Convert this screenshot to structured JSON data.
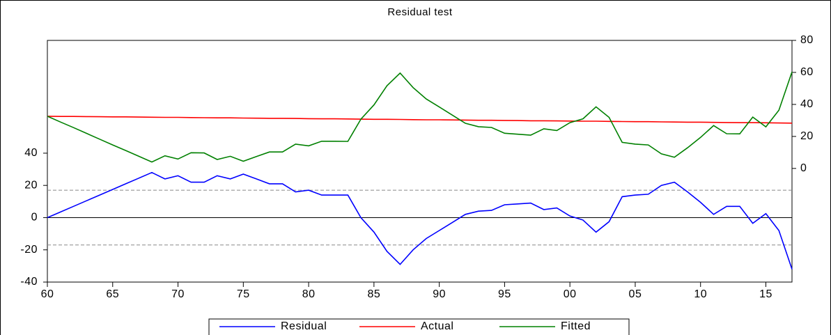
{
  "chart_data": {
    "type": "line",
    "title": "Residual test",
    "x": [
      1960,
      1961,
      1962,
      1963,
      1964,
      1965,
      1966,
      1967,
      1968,
      1969,
      1970,
      1971,
      1972,
      1973,
      1974,
      1975,
      1976,
      1977,
      1978,
      1979,
      1980,
      1981,
      1982,
      1983,
      1984,
      1985,
      1986,
      1987,
      1988,
      1989,
      1990,
      1991,
      1992,
      1993,
      1994,
      1995,
      1996,
      1997,
      1998,
      1999,
      2000,
      2001,
      2002,
      2003,
      2004,
      2005,
      2006,
      2007,
      2008,
      2009,
      2010,
      2011,
      2012,
      2013,
      2014,
      2015,
      2016,
      2017
    ],
    "xlim": [
      1960,
      2017
    ],
    "xticks": [
      {
        "value": 1960,
        "label": "60"
      },
      {
        "value": 1965,
        "label": "65"
      },
      {
        "value": 1970,
        "label": "70"
      },
      {
        "value": 1975,
        "label": "75"
      },
      {
        "value": 1980,
        "label": "80"
      },
      {
        "value": 1985,
        "label": "85"
      },
      {
        "value": 1990,
        "label": "90"
      },
      {
        "value": 1995,
        "label": "95"
      },
      {
        "value": 2000,
        "label": "00"
      },
      {
        "value": 2005,
        "label": "05"
      },
      {
        "value": 2010,
        "label": "10"
      },
      {
        "value": 2015,
        "label": "15"
      }
    ],
    "ylim": [
      -40,
      110
    ],
    "yticks": [
      -40,
      -20,
      0,
      20,
      40
    ],
    "y2lim": [
      -71,
      80
    ],
    "y2ticks": [
      0,
      20,
      40,
      60,
      80
    ],
    "zero_line": true,
    "bands": [
      17,
      -17
    ],
    "legend": "bottom",
    "series": [
      {
        "name": "Residual",
        "color": "#0000ff",
        "axis": "y",
        "values": [
          0,
          3.5,
          7,
          10.5,
          14,
          17.5,
          21,
          24.5,
          28,
          24,
          26,
          22,
          22,
          26,
          24,
          27,
          24,
          21,
          21,
          16,
          17,
          14,
          14,
          14,
          0,
          -9,
          -21,
          -29,
          -20,
          -13,
          -8,
          -3,
          2,
          4,
          4.5,
          8,
          8.5,
          9,
          5,
          6,
          1,
          -1.5,
          -9,
          -2.5,
          13,
          14,
          14.5,
          20,
          22,
          16,
          9.5,
          2,
          7,
          7,
          -3.5,
          2.5,
          -8,
          -32
        ]
      },
      {
        "name": "Actual",
        "color": "#ff0000",
        "axis": "y2",
        "values": [
          32.6,
          32.5,
          32.5,
          32.4,
          32.3,
          32.2,
          32.2,
          32.1,
          32.0,
          31.9,
          31.9,
          31.8,
          31.7,
          31.6,
          31.6,
          31.5,
          31.4,
          31.3,
          31.3,
          31.2,
          31.1,
          31.0,
          31.0,
          30.9,
          30.8,
          30.7,
          30.7,
          30.6,
          30.5,
          30.4,
          30.4,
          30.3,
          30.2,
          30.1,
          30.1,
          30.0,
          29.9,
          29.8,
          29.8,
          29.7,
          29.6,
          29.5,
          29.5,
          29.4,
          29.3,
          29.2,
          29.2,
          29.1,
          29.0,
          28.9,
          28.9,
          28.8,
          28.7,
          28.6,
          28.6,
          28.5,
          28.4,
          28.3
        ]
      },
      {
        "name": "Fitted",
        "color": "#008000",
        "axis": "y2",
        "values": [
          32.6,
          29.0,
          25.5,
          21.9,
          18.3,
          14.7,
          11.2,
          7.6,
          4.0,
          7.9,
          5.9,
          9.8,
          9.7,
          5.6,
          7.6,
          4.5,
          7.4,
          10.3,
          10.3,
          15.2,
          14.1,
          17.0,
          17.0,
          16.9,
          30.8,
          39.7,
          51.7,
          59.6,
          50.5,
          43.4,
          38.4,
          33.3,
          28.2,
          26.1,
          25.6,
          22.0,
          21.4,
          20.8,
          24.8,
          23.7,
          28.6,
          31.0,
          38.5,
          31.9,
          16.3,
          15.2,
          14.7,
          9.1,
          7.0,
          12.9,
          19.4,
          26.8,
          21.7,
          21.6,
          32.1,
          26.0,
          36.4,
          60.3
        ]
      }
    ]
  }
}
